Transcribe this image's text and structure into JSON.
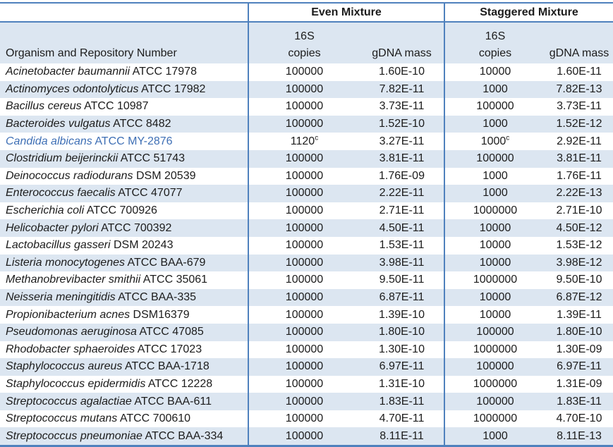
{
  "colors": {
    "border_blue": "#4f81bd",
    "band_blue": "#dce6f1",
    "highlight_text_blue": "#3e6fb5",
    "text": "#1c1c1c"
  },
  "header": {
    "organism_column": "Organism and Repository Number",
    "groups": [
      {
        "label": "Even Mixture"
      },
      {
        "label": "Staggered Mixture"
      }
    ],
    "copies_line1": "16S",
    "copies_line2": "copies",
    "mass_label": "gDNA mass"
  },
  "rows": [
    {
      "species": "Acinetobacter baumannii",
      "repo": "ATCC 17978",
      "even_copies": "100000",
      "even_copies_sup": "",
      "even_mass": "1.60E-10",
      "stag_copies": "10000",
      "stag_copies_sup": "",
      "stag_mass": "1.60E-11",
      "highlighted": false
    },
    {
      "species": "Actinomyces odontolyticus",
      "repo": "ATCC 17982",
      "even_copies": "100000",
      "even_copies_sup": "",
      "even_mass": "7.82E-11",
      "stag_copies": "1000",
      "stag_copies_sup": "",
      "stag_mass": "7.82E-13",
      "highlighted": false
    },
    {
      "species": "Bacillus cereus",
      "repo": "ATCC 10987",
      "even_copies": "100000",
      "even_copies_sup": "",
      "even_mass": "3.73E-11",
      "stag_copies": "100000",
      "stag_copies_sup": "",
      "stag_mass": "3.73E-11",
      "highlighted": false
    },
    {
      "species": "Bacteroides vulgatus",
      "repo": "ATCC 8482",
      "even_copies": "100000",
      "even_copies_sup": "",
      "even_mass": "1.52E-10",
      "stag_copies": "1000",
      "stag_copies_sup": "",
      "stag_mass": "1.52E-12",
      "highlighted": false
    },
    {
      "species": "Candida albicans",
      "repo": "ATCC MY-2876",
      "even_copies": "1120",
      "even_copies_sup": "c",
      "even_mass": "3.27E-11",
      "stag_copies": "1000",
      "stag_copies_sup": "c",
      "stag_mass": "2.92E-11",
      "highlighted": true
    },
    {
      "species": "Clostridium beijerinckii",
      "repo": "ATCC 51743",
      "even_copies": "100000",
      "even_copies_sup": "",
      "even_mass": "3.81E-11",
      "stag_copies": "100000",
      "stag_copies_sup": "",
      "stag_mass": "3.81E-11",
      "highlighted": false
    },
    {
      "species": "Deinococcus radiodurans",
      "repo": "DSM 20539",
      "even_copies": "100000",
      "even_copies_sup": "",
      "even_mass": "1.76E-09",
      "stag_copies": "1000",
      "stag_copies_sup": "",
      "stag_mass": "1.76E-11",
      "highlighted": false
    },
    {
      "species": "Enterococcus faecalis",
      "repo": "ATCC 47077",
      "even_copies": "100000",
      "even_copies_sup": "",
      "even_mass": "2.22E-11",
      "stag_copies": "1000",
      "stag_copies_sup": "",
      "stag_mass": "2.22E-13",
      "highlighted": false
    },
    {
      "species": "Escherichia coli",
      "repo": "ATCC 700926",
      "even_copies": "100000",
      "even_copies_sup": "",
      "even_mass": "2.71E-11",
      "stag_copies": "1000000",
      "stag_copies_sup": "",
      "stag_mass": "2.71E-10",
      "highlighted": false
    },
    {
      "species": "Helicobacter pylori",
      "repo": "ATCC 700392",
      "even_copies": "100000",
      "even_copies_sup": "",
      "even_mass": "4.50E-11",
      "stag_copies": "10000",
      "stag_copies_sup": "",
      "stag_mass": "4.50E-12",
      "highlighted": false
    },
    {
      "species": "Lactobacillus gasseri",
      "repo": "DSM 20243",
      "even_copies": "100000",
      "even_copies_sup": "",
      "even_mass": "1.53E-11",
      "stag_copies": "10000",
      "stag_copies_sup": "",
      "stag_mass": "1.53E-12",
      "highlighted": false
    },
    {
      "species": "Listeria monocytogenes",
      "repo": "ATCC BAA-679",
      "even_copies": "100000",
      "even_copies_sup": "",
      "even_mass": "3.98E-11",
      "stag_copies": "10000",
      "stag_copies_sup": "",
      "stag_mass": "3.98E-12",
      "highlighted": false
    },
    {
      "species": "Methanobrevibacter smithii",
      "repo": "ATCC 35061",
      "even_copies": "100000",
      "even_copies_sup": "",
      "even_mass": "9.50E-11",
      "stag_copies": "1000000",
      "stag_copies_sup": "",
      "stag_mass": "9.50E-10",
      "highlighted": false
    },
    {
      "species": "Neisseria meningitidis",
      "repo": "ATCC BAA-335",
      "even_copies": "100000",
      "even_copies_sup": "",
      "even_mass": "6.87E-11",
      "stag_copies": "10000",
      "stag_copies_sup": "",
      "stag_mass": "6.87E-12",
      "highlighted": false
    },
    {
      "species": "Propionibacterium acnes",
      "repo": "DSM16379",
      "even_copies": "100000",
      "even_copies_sup": "",
      "even_mass": "1.39E-10",
      "stag_copies": "10000",
      "stag_copies_sup": "",
      "stag_mass": "1.39E-11",
      "highlighted": false
    },
    {
      "species": "Pseudomonas aeruginosa",
      "repo": "ATCC 47085",
      "even_copies": "100000",
      "even_copies_sup": "",
      "even_mass": "1.80E-10",
      "stag_copies": "100000",
      "stag_copies_sup": "",
      "stag_mass": "1.80E-10",
      "highlighted": false
    },
    {
      "species": "Rhodobacter sphaeroides",
      "repo": "ATCC 17023",
      "even_copies": "100000",
      "even_copies_sup": "",
      "even_mass": "1.30E-10",
      "stag_copies": "1000000",
      "stag_copies_sup": "",
      "stag_mass": "1.30E-09",
      "highlighted": false
    },
    {
      "species": "Staphylococcus aureus",
      "repo": "ATCC BAA-1718",
      "even_copies": "100000",
      "even_copies_sup": "",
      "even_mass": "6.97E-11",
      "stag_copies": "100000",
      "stag_copies_sup": "",
      "stag_mass": "6.97E-11",
      "highlighted": false
    },
    {
      "species": "Staphylococcus epidermidis",
      "repo": "ATCC 12228",
      "even_copies": "100000",
      "even_copies_sup": "",
      "even_mass": "1.31E-10",
      "stag_copies": "1000000",
      "stag_copies_sup": "",
      "stag_mass": "1.31E-09",
      "highlighted": false
    },
    {
      "species": "Streptococcus agalactiae",
      "repo": "ATCC BAA-611",
      "even_copies": "100000",
      "even_copies_sup": "",
      "even_mass": "1.83E-11",
      "stag_copies": "100000",
      "stag_copies_sup": "",
      "stag_mass": "1.83E-11",
      "highlighted": false
    },
    {
      "species": "Streptococcus mutans",
      "repo": "ATCC 700610",
      "even_copies": "100000",
      "even_copies_sup": "",
      "even_mass": "4.70E-11",
      "stag_copies": "1000000",
      "stag_copies_sup": "",
      "stag_mass": "4.70E-10",
      "highlighted": false
    },
    {
      "species": "Streptococcus pneumoniae",
      "repo": "ATCC BAA-334",
      "even_copies": "100000",
      "even_copies_sup": "",
      "even_mass": "8.11E-11",
      "stag_copies": "1000",
      "stag_copies_sup": "",
      "stag_mass": "8.11E-13",
      "highlighted": false
    }
  ]
}
